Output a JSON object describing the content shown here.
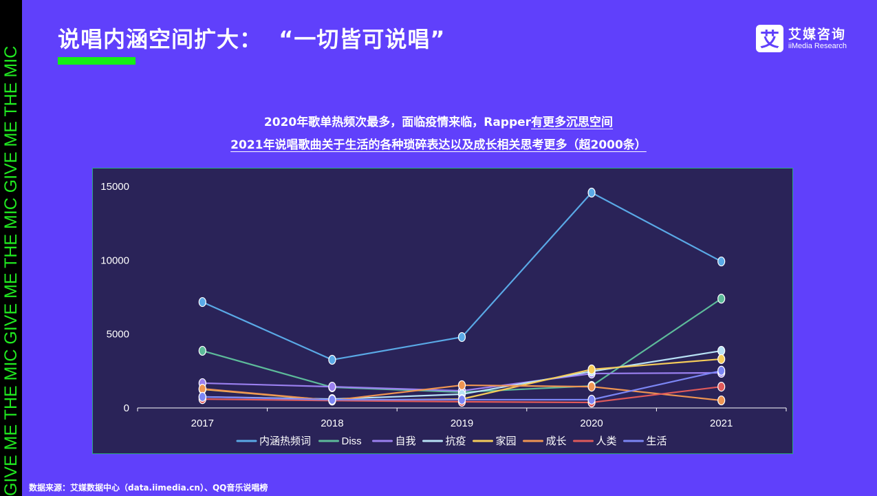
{
  "sidebar": {
    "repeat_text": "GIVE ME THE MIC",
    "text": "GIVE ME THE MIC   GIVE ME THE MIC   GIVE ME THE MIC"
  },
  "header": {
    "title": "说唱内涵空间扩大：  “一切皆可说唱”",
    "logo": {
      "icon_char": "艾",
      "name_cn": "艾媒咨询",
      "name_en": "iiMedia Research"
    }
  },
  "subtitles": {
    "line1_plain": "2020年歌单热频次最多，面临疫情来临，Rapper",
    "line1_underlined": "有更多沉思空间",
    "line2": "2021年说唱歌曲关于生活的各种琐碎表达以及成长相关思考更多（超2000条）"
  },
  "source": "数据来源：艾媒数据中心（data.iimedia.cn）、QQ音乐说唱榜",
  "colors": {
    "background": "#6040fb",
    "chart_bg": "#2a2358",
    "accent_green": "#14f014"
  },
  "chart_data": {
    "type": "line",
    "title": "",
    "xlabel": "",
    "ylabel": "",
    "categories": [
      "2017",
      "2018",
      "2019",
      "2020",
      "2021"
    ],
    "ylim": [
      0,
      15000
    ],
    "yticks": [
      0,
      5000,
      10000,
      15000
    ],
    "grid": false,
    "legend_position": "bottom",
    "series": [
      {
        "name": "内涵热频词",
        "color": "#5aa9e6",
        "values": [
          7170,
          3260,
          4800,
          14580,
          9920
        ]
      },
      {
        "name": "Diss",
        "color": "#5dbb9a",
        "values": [
          3870,
          1400,
          1070,
          1490,
          7400
        ]
      },
      {
        "name": "自我",
        "color": "#9b80f0",
        "values": [
          1680,
          1440,
          1160,
          2330,
          2380
        ]
      },
      {
        "name": "抗疫",
        "color": "#b8e2f5",
        "values": [
          750,
          600,
          930,
          2470,
          3870
        ]
      },
      {
        "name": "家园",
        "color": "#f5cc5a",
        "values": [
          1260,
          510,
          600,
          2610,
          3310
        ]
      },
      {
        "name": "成长",
        "color": "#ef9552",
        "values": [
          1300,
          510,
          1540,
          1440,
          510
        ]
      },
      {
        "name": "人类",
        "color": "#e05a5a",
        "values": [
          600,
          500,
          420,
          370,
          1440
        ]
      },
      {
        "name": "生活",
        "color": "#7c86f5",
        "values": [
          750,
          560,
          560,
          560,
          2520
        ]
      }
    ]
  }
}
